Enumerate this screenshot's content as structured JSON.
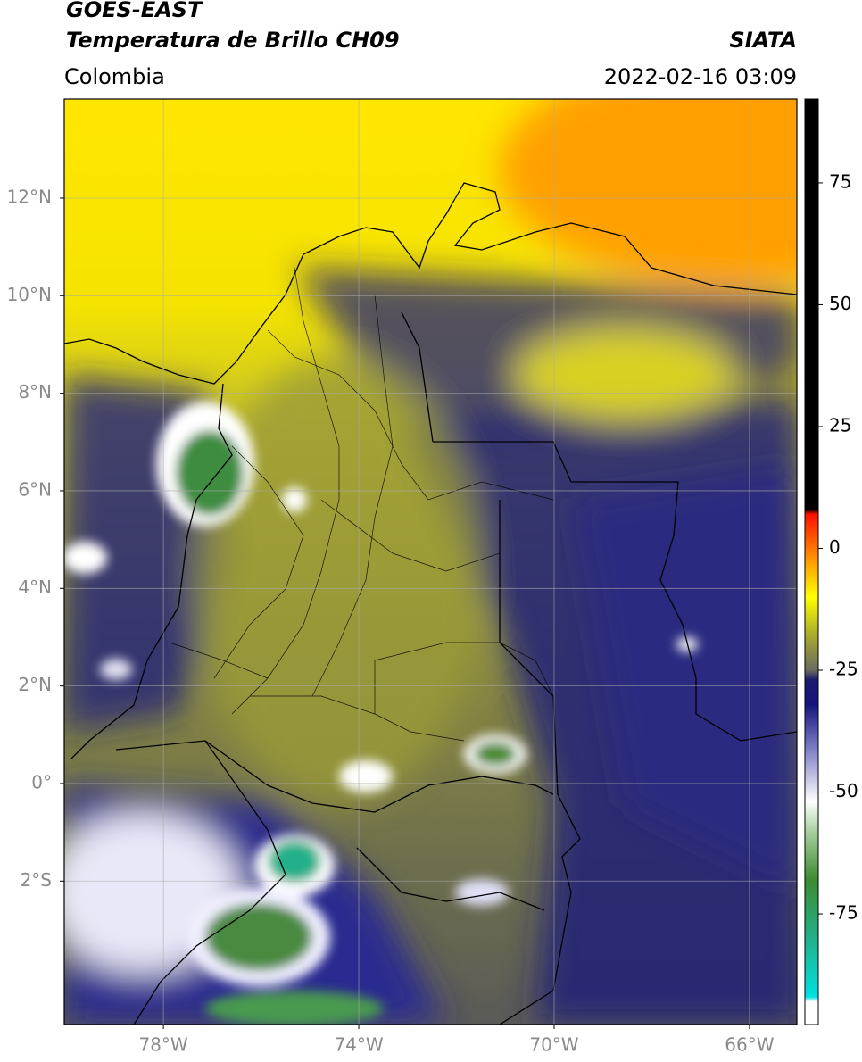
{
  "header": {
    "title": "GOES-EAST",
    "subtitle": "Temperatura de Brillo CH09",
    "source": "SIATA",
    "region": "Colombia",
    "datetime": "2022-02-16 03:09"
  },
  "map": {
    "lonlim": [
      -80.03,
      -65.03
    ],
    "latlim": [
      -4.94,
      14.03
    ],
    "grid": true,
    "lonticks": [
      {
        "value": -78,
        "label": "78°W"
      },
      {
        "value": -74,
        "label": "74°W"
      },
      {
        "value": -70,
        "label": "70°W"
      },
      {
        "value": -66,
        "label": "66°W"
      }
    ],
    "latticks": [
      {
        "value": 12,
        "label": "12°N"
      },
      {
        "value": 10,
        "label": "10°N"
      },
      {
        "value": 8,
        "label": "8°N"
      },
      {
        "value": 6,
        "label": "6°N"
      },
      {
        "value": 4,
        "label": "4°N"
      },
      {
        "value": 2,
        "label": "2°N"
      },
      {
        "value": 0,
        "label": "0°"
      },
      {
        "value": -2,
        "label": "2°S"
      }
    ]
  },
  "colorbar": {
    "clim": [
      -97.7,
      92.2
    ],
    "ticks": [
      75,
      50,
      25,
      0,
      -25,
      -50,
      -75
    ],
    "colormap": [
      {
        "value": -97.7,
        "color": "#ffffff"
      },
      {
        "value": -93,
        "color": "#ffffff"
      },
      {
        "value": -92,
        "color": "#00e0e0"
      },
      {
        "value": -80,
        "color": "#22b08a"
      },
      {
        "value": -68,
        "color": "#3c8c30"
      },
      {
        "value": -58,
        "color": "#a8d0a0"
      },
      {
        "value": -52,
        "color": "#ffffff"
      },
      {
        "value": -42,
        "color": "#8888cc"
      },
      {
        "value": -32,
        "color": "#141480"
      },
      {
        "value": -27,
        "color": "#1a1a70"
      },
      {
        "value": -25,
        "color": "#6a6a60"
      },
      {
        "value": -18,
        "color": "#a8a830"
      },
      {
        "value": -10,
        "color": "#ffff00"
      },
      {
        "value": -3,
        "color": "#ffa000"
      },
      {
        "value": 7,
        "color": "#ff1000"
      },
      {
        "value": 8,
        "color": "#000000"
      },
      {
        "value": 92.2,
        "color": "#000000"
      }
    ]
  }
}
